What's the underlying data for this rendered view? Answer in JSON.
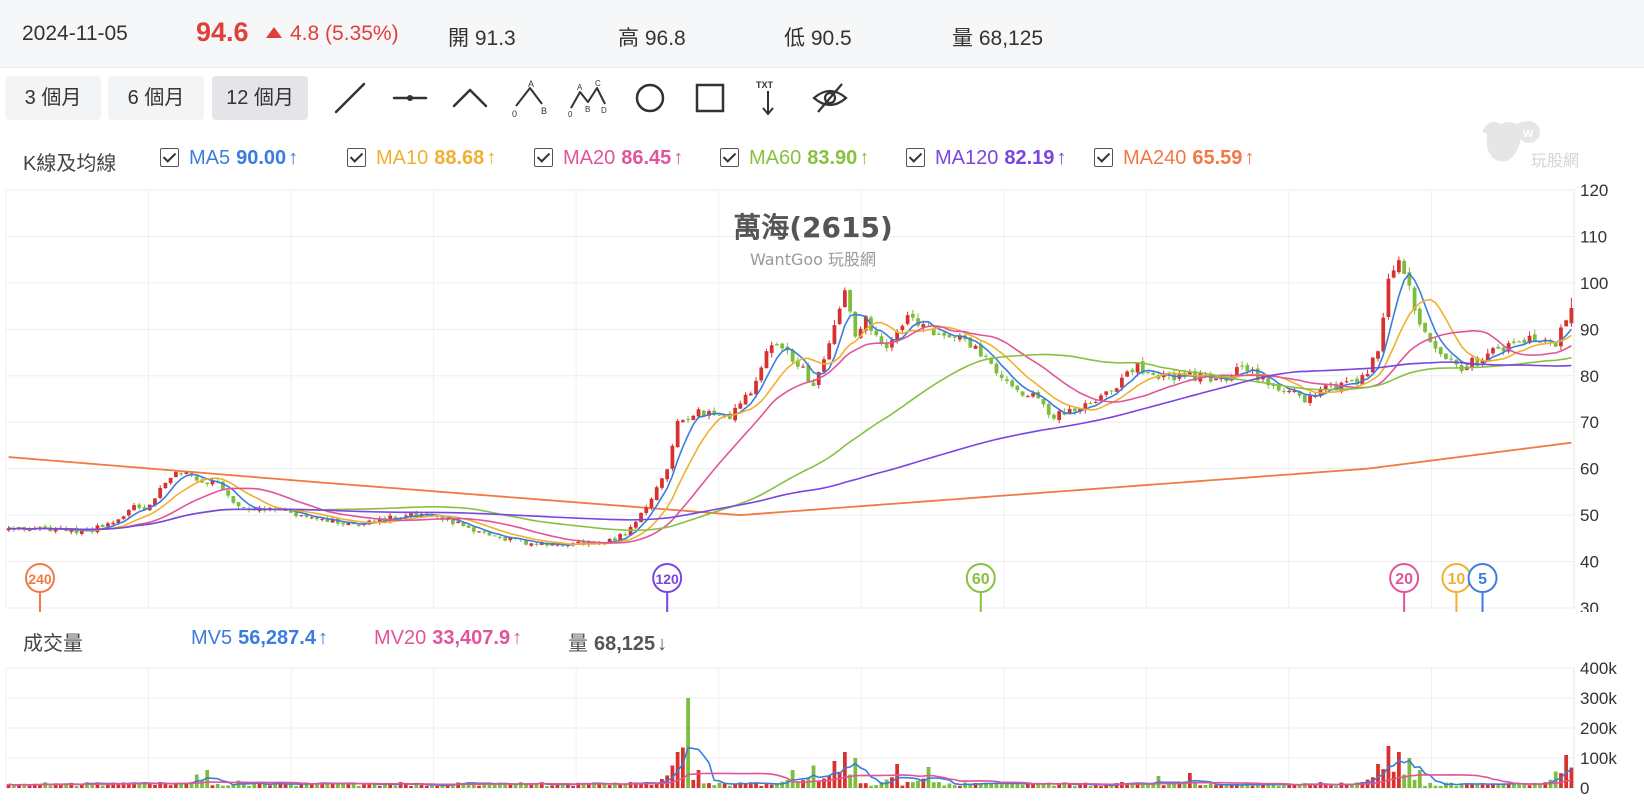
{
  "quote": {
    "date": "2024-11-05",
    "price": "94.6",
    "change": "4.8 (5.35%)",
    "open_label": "開",
    "open": "91.3",
    "high_label": "高",
    "high": "96.8",
    "low_label": "低",
    "low": "90.5",
    "volume_label": "量",
    "volume": "68,125",
    "up_color": "#e0403a"
  },
  "periods": [
    {
      "label": "3 個月",
      "active": false
    },
    {
      "label": "6 個月",
      "active": false
    },
    {
      "label": "12 個月",
      "active": true
    }
  ],
  "tools": [
    "line-icon",
    "horizontal-line-icon",
    "angle-line-icon",
    "abc-pattern-icon",
    "abcd-pattern-icon",
    "circle-icon",
    "rectangle-icon",
    "text-annotation-icon",
    "hide-eye-icon"
  ],
  "tool_text": {
    "abc_a": "A",
    "abc_b": "B",
    "abc_0": "0",
    "abcd_a": "A",
    "abcd_b": "B",
    "abcd_c": "C",
    "abcd_d": "D",
    "abcd_0": "0",
    "txt": "TXT"
  },
  "ma_legend": {
    "label": "K線及均線",
    "items": [
      {
        "name": "MA5",
        "value": "90.00",
        "arrow": "↑",
        "color": "#3b7ddd"
      },
      {
        "name": "MA10",
        "value": "88.68",
        "arrow": "↑",
        "color": "#f0b030"
      },
      {
        "name": "MA20",
        "value": "86.45",
        "arrow": "↑",
        "color": "#e0559a"
      },
      {
        "name": "MA60",
        "value": "83.90",
        "arrow": "↑",
        "color": "#88c040"
      },
      {
        "name": "MA120",
        "value": "82.19",
        "arrow": "↑",
        "color": "#7a45e0"
      },
      {
        "name": "MA240",
        "value": "65.59",
        "arrow": "↑",
        "color": "#f07a45"
      }
    ]
  },
  "logo": {
    "text": "玩股網"
  },
  "vol_legend": {
    "label": "成交量",
    "items": [
      {
        "name": "MV5",
        "value": "56,287.4",
        "arrow": "↑",
        "color": "#3b7ddd"
      },
      {
        "name": "MV20",
        "value": "33,407.9",
        "arrow": "↑",
        "color": "#e0559a"
      },
      {
        "name": "量",
        "value": "68,125",
        "arrow": "↓",
        "color": "#555555"
      }
    ]
  },
  "chart_data": [
    {
      "type": "candlestick",
      "title": "萬海(2615)",
      "subtitle": "WantGoo 玩股網",
      "ylim": [
        30,
        120
      ],
      "yticks": [
        30,
        40,
        50,
        60,
        70,
        80,
        90,
        100,
        110,
        120
      ],
      "grid": true,
      "colors": {
        "up": "#d8322f",
        "down": "#7cbd3c"
      },
      "anchors_close": [
        [
          0,
          47
        ],
        [
          8,
          47
        ],
        [
          14,
          46.5
        ],
        [
          20,
          48
        ],
        [
          24,
          52
        ],
        [
          26,
          51
        ],
        [
          32,
          60
        ],
        [
          35,
          58
        ],
        [
          40,
          57
        ],
        [
          44,
          52
        ],
        [
          50,
          51
        ],
        [
          58,
          50
        ],
        [
          64,
          48
        ],
        [
          70,
          49
        ],
        [
          78,
          50
        ],
        [
          84,
          49
        ],
        [
          88,
          47
        ],
        [
          94,
          45
        ],
        [
          100,
          44
        ],
        [
          106,
          43.5
        ],
        [
          110,
          44
        ],
        [
          114,
          44
        ],
        [
          118,
          46
        ],
        [
          122,
          52
        ],
        [
          126,
          60
        ],
        [
          128,
          70
        ],
        [
          132,
          72
        ],
        [
          138,
          71
        ],
        [
          142,
          77
        ],
        [
          146,
          87
        ],
        [
          150,
          84
        ],
        [
          154,
          78
        ],
        [
          158,
          90
        ],
        [
          160,
          98
        ],
        [
          162,
          88
        ],
        [
          164,
          92
        ],
        [
          168,
          86
        ],
        [
          172,
          93
        ],
        [
          176,
          90
        ],
        [
          180,
          89
        ],
        [
          184,
          87
        ],
        [
          188,
          82
        ],
        [
          192,
          77
        ],
        [
          196,
          76
        ],
        [
          200,
          71
        ],
        [
          204,
          73
        ],
        [
          208,
          75
        ],
        [
          212,
          78
        ],
        [
          216,
          82
        ],
        [
          220,
          80
        ],
        [
          226,
          80
        ],
        [
          232,
          79
        ],
        [
          236,
          82
        ],
        [
          240,
          79
        ],
        [
          244,
          77
        ],
        [
          248,
          75
        ],
        [
          252,
          77
        ],
        [
          256,
          78
        ],
        [
          260,
          80
        ],
        [
          262,
          86
        ],
        [
          264,
          100
        ],
        [
          266,
          106
        ],
        [
          268,
          100
        ],
        [
          270,
          90
        ],
        [
          274,
          84
        ],
        [
          278,
          82
        ],
        [
          282,
          84
        ],
        [
          286,
          86
        ],
        [
          290,
          88
        ],
        [
          294,
          87
        ],
        [
          296,
          87
        ],
        [
          298,
          92
        ],
        [
          299,
          94.6
        ]
      ],
      "candles_count": 300,
      "ma": [
        {
          "name": "MA5",
          "color": "#3b7ddd",
          "last": 90.0
        },
        {
          "name": "MA10",
          "color": "#f0b030",
          "last": 88.68
        },
        {
          "name": "MA20",
          "color": "#e0559a",
          "last": 86.45
        },
        {
          "name": "MA60",
          "color": "#88c040",
          "last": 83.9
        },
        {
          "name": "MA120",
          "color": "#7a45e0",
          "last": 82.19
        },
        {
          "name": "MA240",
          "color": "#f07a45",
          "last": 65.59,
          "anchors": [
            [
              0,
              62.5
            ],
            [
              60,
              57
            ],
            [
              140,
              50
            ],
            [
              200,
              55
            ],
            [
              260,
              60
            ],
            [
              299,
              65.59
            ]
          ]
        }
      ],
      "ma_period_markers": [
        {
          "label": "240",
          "index": 6,
          "color": "#f07a45"
        },
        {
          "label": "120",
          "index": 126,
          "color": "#7a45e0"
        },
        {
          "label": "60",
          "index": 186,
          "color": "#88c040"
        },
        {
          "label": "20",
          "index": 267,
          "color": "#e0559a"
        },
        {
          "label": "10",
          "index": 277,
          "color": "#f0b030"
        },
        {
          "label": "5",
          "index": 282,
          "color": "#3b7ddd"
        }
      ]
    },
    {
      "type": "bar",
      "title": "成交量",
      "ylim": [
        0,
        400000
      ],
      "yticks": [
        0,
        100000,
        200000,
        300000,
        400000
      ],
      "ytick_labels": [
        "0",
        "100k",
        "200k",
        "300k",
        "400k"
      ],
      "volume_spikes": [
        [
          26,
          20000
        ],
        [
          36,
          45000
        ],
        [
          38,
          60000
        ],
        [
          44,
          25000
        ],
        [
          122,
          20000
        ],
        [
          126,
          40000
        ],
        [
          128,
          120000
        ],
        [
          130,
          300000
        ],
        [
          132,
          60000
        ],
        [
          150,
          60000
        ],
        [
          154,
          75000
        ],
        [
          158,
          90000
        ],
        [
          160,
          120000
        ],
        [
          162,
          100000
        ],
        [
          170,
          80000
        ],
        [
          176,
          70000
        ],
        [
          220,
          40000
        ],
        [
          226,
          50000
        ],
        [
          262,
          80000
        ],
        [
          264,
          140000
        ],
        [
          266,
          120000
        ],
        [
          268,
          100000
        ],
        [
          270,
          60000
        ],
        [
          296,
          55000
        ],
        [
          298,
          110000
        ],
        [
          299,
          68125
        ]
      ],
      "series": [
        {
          "name": "MV5",
          "color": "#3b7ddd",
          "last": 56287.4
        },
        {
          "name": "MV20",
          "color": "#e0559a",
          "last": 33407.9
        }
      ]
    }
  ]
}
